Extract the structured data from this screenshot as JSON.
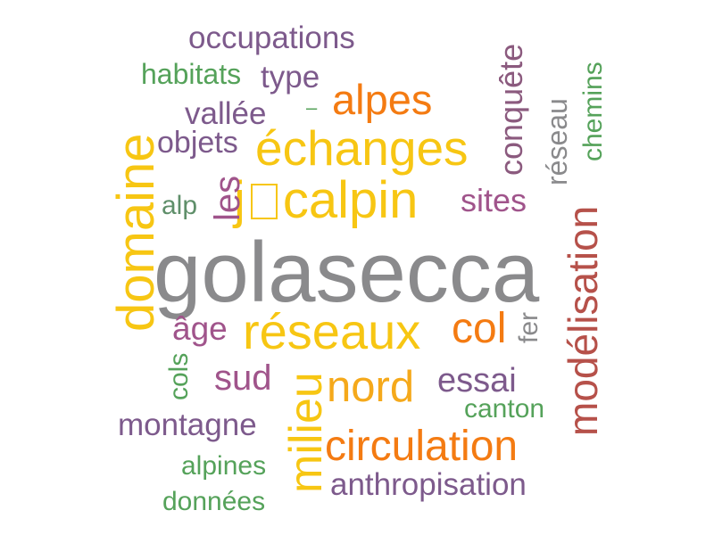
{
  "palette": {
    "gray": "#8a8a8c",
    "yellow": "#f7c613",
    "gold": "#f5a91b",
    "orange": "#f47b12",
    "brown_red": "#b6514a",
    "purple": "#7d5a8c",
    "plum": "#a0548b",
    "mauve": "#8b5a7e",
    "green": "#55a25a",
    "sage": "#5f8f6a"
  },
  "words": [
    "golasecca",
    "domaine",
    "échanges",
    "réseaux",
    "jcalpin",
    "milieu",
    "nord",
    "circulation",
    "modélisation",
    "alpes",
    "col",
    "les",
    "sites",
    "conquête",
    "essai",
    "sud",
    "montagne",
    "anthropisation",
    "occupations",
    "réseau",
    "chemins",
    "habitats",
    "type",
    "vallée",
    "objets",
    "âge",
    "fer",
    "alp",
    "cols",
    "canton",
    "alpines",
    "données",
    "–"
  ]
}
